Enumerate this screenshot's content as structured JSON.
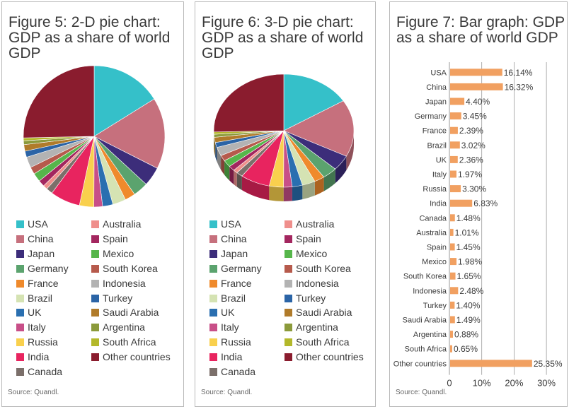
{
  "panels": {
    "fig5": {
      "title": "Figure 5: 2-D pie chart:\nGDP as a share of world\nGDP",
      "source": "Source: Quandl."
    },
    "fig6": {
      "title": "Figure 6: 3-D pie chart:\nGDP as a share of world\nGDP",
      "source": "Source: Quandl."
    },
    "fig7": {
      "title": "Figure 7: Bar graph: GDP\nas a share of world GDP",
      "source": "Source: Quandl."
    }
  },
  "colors": {
    "USA": "#35c0c9",
    "China": "#c6707d",
    "Japan": "#3c2d7a",
    "Germany": "#5ba36e",
    "France": "#ef8a2c",
    "Brazil": "#d5e3b3",
    "UK": "#2a6fb0",
    "Italy": "#c84f88",
    "Russia": "#f9d04d",
    "India": "#e8245f",
    "Canada": "#7b6f6a",
    "Australia": "#ef8f8c",
    "Spain": "#a3265f",
    "Mexico": "#56b64b",
    "South Korea": "#b65a4c",
    "Indonesia": "#b3b3b3",
    "Turkey": "#2b64a6",
    "Saudi Arabia": "#b07b2a",
    "Argentina": "#8b9a3b",
    "South Africa": "#b3b82a",
    "Other countries": "#8a1c2e",
    "bar": "#f1a061",
    "axis": "#9a9a9a"
  },
  "chart_data": [
    {
      "type": "pie",
      "title": "Figure 5: 2-D pie chart: GDP as a share of world GDP",
      "categories": [
        "USA",
        "China",
        "Japan",
        "Germany",
        "France",
        "Brazil",
        "UK",
        "Italy",
        "Russia",
        "India",
        "Canada",
        "Australia",
        "Spain",
        "Mexico",
        "South Korea",
        "Indonesia",
        "Turkey",
        "Saudi Arabia",
        "Argentina",
        "South Africa",
        "Other countries"
      ],
      "values": [
        16.14,
        16.32,
        4.4,
        3.45,
        2.39,
        3.02,
        2.36,
        1.97,
        3.3,
        6.83,
        1.48,
        1.01,
        1.45,
        1.98,
        1.65,
        2.48,
        1.4,
        1.49,
        0.88,
        0.65,
        25.35
      ],
      "legend_columns": [
        [
          "USA",
          "China",
          "Japan",
          "Germany",
          "France",
          "Brazil",
          "UK",
          "Italy",
          "Russia",
          "India",
          "Canada"
        ],
        [
          "Australia",
          "Spain",
          "Mexico",
          "South Korea",
          "Indonesia",
          "Turkey",
          "Saudi Arabia",
          "Argentina",
          "South Africa",
          "Other countries"
        ]
      ]
    },
    {
      "type": "pie",
      "title": "Figure 6: 3-D pie chart: GDP as a share of world GDP",
      "categories": [
        "USA",
        "China",
        "Japan",
        "Germany",
        "France",
        "Brazil",
        "UK",
        "Italy",
        "Russia",
        "India",
        "Canada",
        "Australia",
        "Spain",
        "Mexico",
        "South Korea",
        "Indonesia",
        "Turkey",
        "Saudi Arabia",
        "Argentina",
        "South Africa",
        "Other countries"
      ],
      "values": [
        16.14,
        16.32,
        4.4,
        3.45,
        2.39,
        3.02,
        2.36,
        1.97,
        3.3,
        6.83,
        1.48,
        1.01,
        1.45,
        1.98,
        1.65,
        2.48,
        1.4,
        1.49,
        0.88,
        0.65,
        25.35
      ],
      "legend_columns": [
        [
          "USA",
          "China",
          "Japan",
          "Germany",
          "France",
          "Brazil",
          "UK",
          "Italy",
          "Russia",
          "India",
          "Canada"
        ],
        [
          "Australia",
          "Spain",
          "Mexico",
          "South Korea",
          "Indonesia",
          "Turkey",
          "Saudi Arabia",
          "Argentina",
          "South Africa",
          "Other countries"
        ]
      ]
    },
    {
      "type": "bar",
      "orientation": "horizontal",
      "title": "Figure 7: Bar graph: GDP as a share of world GDP",
      "categories": [
        "USA",
        "China",
        "Japan",
        "Germany",
        "France",
        "Brazil",
        "UK",
        "Italy",
        "Russia",
        "India",
        "Canada",
        "Australia",
        "Spain",
        "Mexico",
        "South Korea",
        "Indonesia",
        "Turkey",
        "Saudi Arabia",
        "Argentina",
        "South Africa",
        "Other countries"
      ],
      "values": [
        16.14,
        16.32,
        4.4,
        3.45,
        2.39,
        3.02,
        2.36,
        1.97,
        3.3,
        6.83,
        1.48,
        1.01,
        1.45,
        1.98,
        1.65,
        2.48,
        1.4,
        1.49,
        0.88,
        0.65,
        25.35
      ],
      "value_labels": [
        "16.14%",
        "16.32%",
        "4.40%",
        "3.45%",
        "2.39%",
        "3.02%",
        "2.36%",
        "1.97%",
        "3.30%",
        "6.83%",
        "1.48%",
        "1.01%",
        "1.45%",
        "1.98%",
        "1.65%",
        "2.48%",
        "1.40%",
        "1.49%",
        "0.88%",
        "0.65%",
        "25.35%"
      ],
      "xlim": [
        0,
        30
      ],
      "xticks": [
        "0",
        "10%",
        "20%",
        "30%"
      ],
      "grid": "vertical"
    }
  ]
}
